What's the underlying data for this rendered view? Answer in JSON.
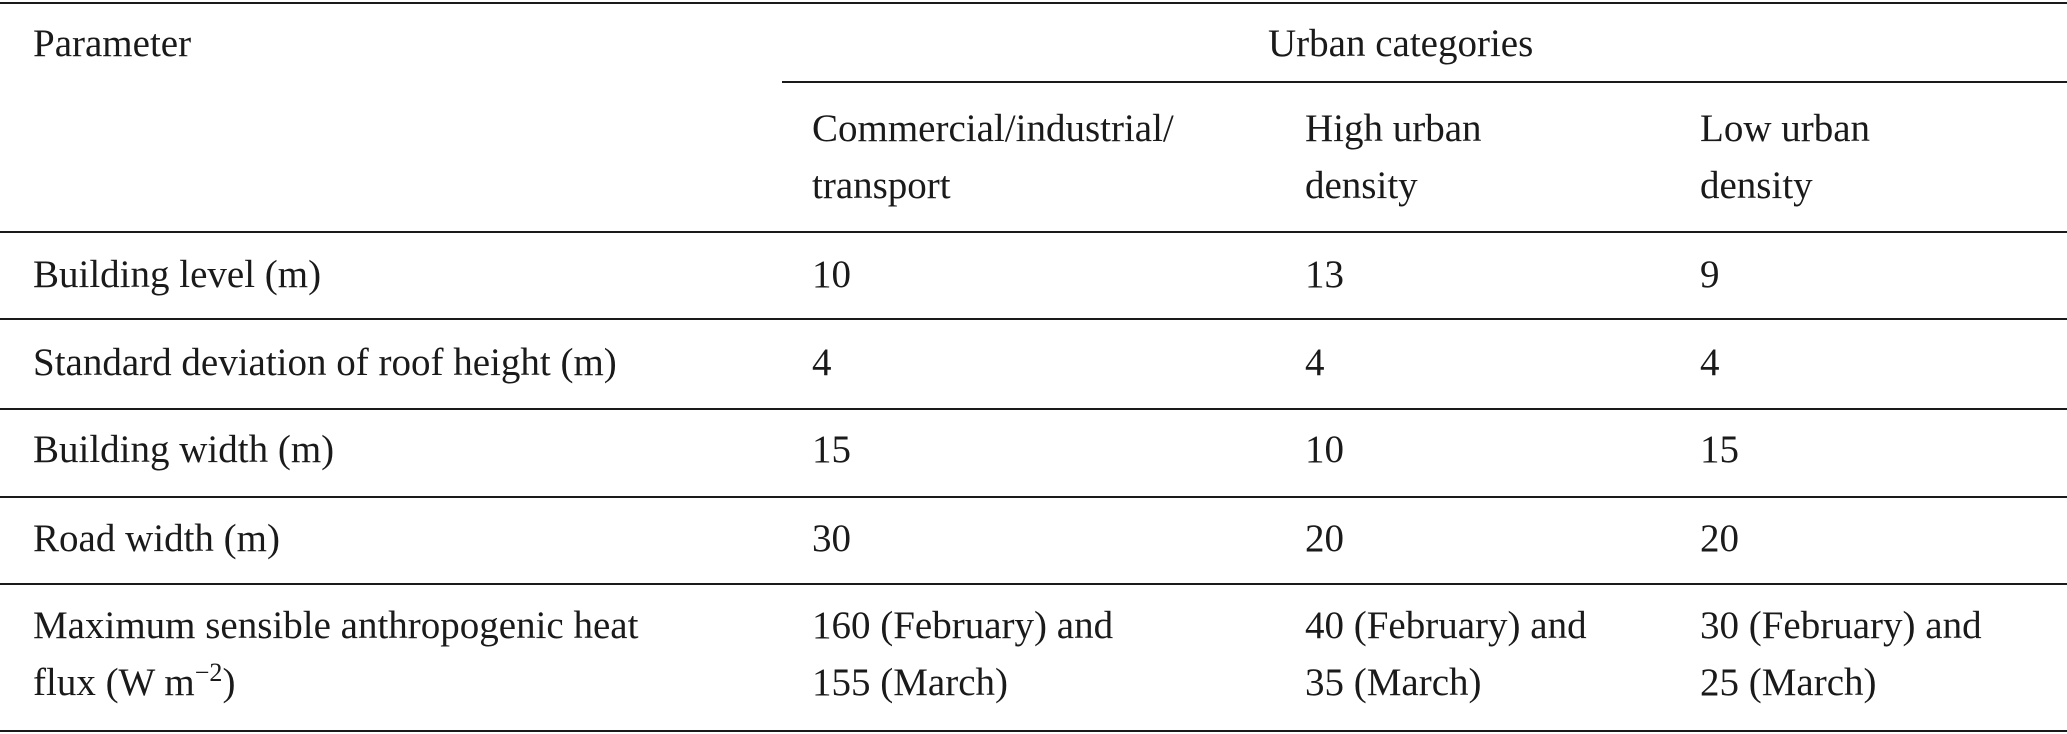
{
  "table": {
    "header": {
      "parameter": "Parameter",
      "group": "Urban categories",
      "columns": [
        [
          "Commercial/industrial/",
          "transport"
        ],
        [
          "High urban",
          "density"
        ],
        [
          "Low urban",
          "density"
        ]
      ]
    },
    "rows": [
      [
        "Building level (m)",
        "10",
        "13",
        "9"
      ],
      [
        "Standard deviation of roof height (m)",
        "4",
        "4",
        "4"
      ],
      [
        "Building width (m)",
        "15",
        "10",
        "15"
      ],
      [
        "Road width (m)",
        "30",
        "20",
        "20"
      ],
      [
        {
          "line1": "Maximum sensible anthropogenic heat",
          "line2": "flux (W m",
          "superscript": "−2",
          "closing": ")"
        },
        [
          "160 (February) and",
          "155 (March)"
        ],
        [
          "40 (February) and",
          "35 (March)"
        ],
        [
          "30 (February) and",
          "25 (March)"
        ]
      ]
    ]
  }
}
